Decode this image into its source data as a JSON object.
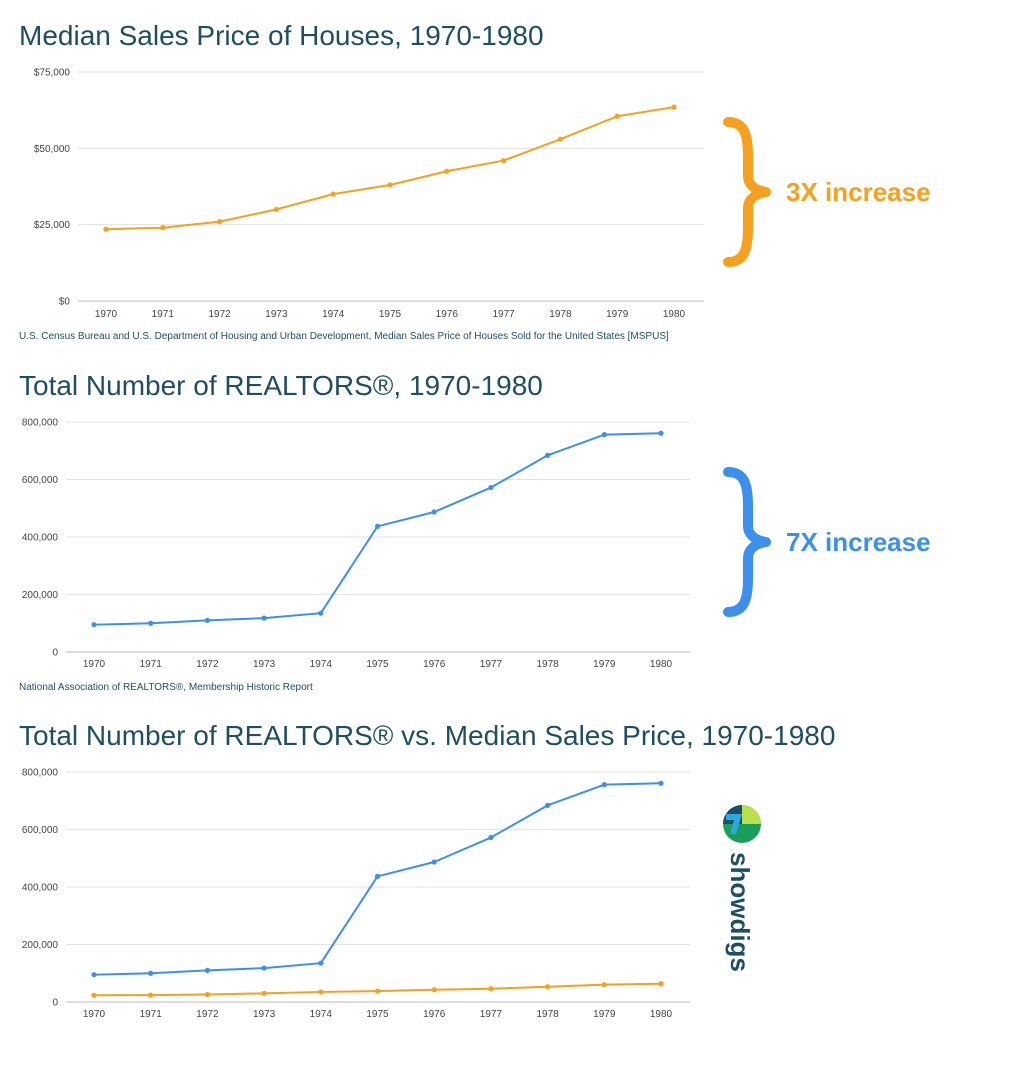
{
  "colors": {
    "price": "#f5a01f",
    "realtors": "#3d8fec",
    "title": "#1f4e63",
    "grid": "#e3e3e3"
  },
  "annotations": {
    "price_increase": "3X increase",
    "realtors_increase": "7X increase"
  },
  "logo": {
    "text": "showdigs",
    "icon": "showdigs-logo-icon"
  },
  "chart_data": [
    {
      "type": "line",
      "title": "Median Sales Price of Houses, 1970-1980",
      "source": "U.S. Census Bureau and U.S. Department of Housing and Urban Development, Median Sales Price of Houses Sold for the United States [MSPUS]",
      "categories": [
        "1970",
        "1971",
        "1972",
        "1973",
        "1974",
        "1975",
        "1976",
        "1977",
        "1978",
        "1979",
        "1980"
      ],
      "series": [
        {
          "name": "Median Sales Price",
          "color": "#f5a01f",
          "values": [
            23500,
            24000,
            26000,
            30000,
            35000,
            38000,
            42500,
            46000,
            53000,
            60500,
            63500
          ]
        }
      ],
      "ylim": [
        0,
        75000
      ],
      "yticks": [
        0,
        25000,
        50000,
        75000
      ],
      "ytick_labels": [
        "$0",
        "$25,000",
        "$50,000",
        "$75,000"
      ],
      "grid": true
    },
    {
      "type": "line",
      "title": "Total Number of REALTORS®, 1970-1980",
      "source": "National Association of REALTORS®, Membership Historic Report",
      "categories": [
        "1970",
        "1971",
        "1972",
        "1973",
        "1974",
        "1975",
        "1976",
        "1977",
        "1978",
        "1979",
        "1980"
      ],
      "series": [
        {
          "name": "REALTORS",
          "color": "#3d8fec",
          "values": [
            95000,
            100000,
            110000,
            118000,
            135000,
            437000,
            487000,
            572000,
            684000,
            756000,
            761000
          ]
        }
      ],
      "ylim": [
        0,
        800000
      ],
      "yticks": [
        0,
        200000,
        400000,
        600000,
        800000
      ],
      "ytick_labels": [
        "0",
        "200,000",
        "400,000",
        "600,000",
        "800,000"
      ],
      "grid": true
    },
    {
      "type": "line",
      "title": "Total Number of REALTORS® vs. Median Sales Price, 1970-1980",
      "categories": [
        "1970",
        "1971",
        "1972",
        "1973",
        "1974",
        "1975",
        "1976",
        "1977",
        "1978",
        "1979",
        "1980"
      ],
      "series": [
        {
          "name": "REALTORS",
          "color": "#3d8fec",
          "values": [
            95000,
            100000,
            110000,
            118000,
            135000,
            437000,
            487000,
            572000,
            684000,
            756000,
            761000
          ]
        },
        {
          "name": "Median Sales Price",
          "color": "#f5a01f",
          "values": [
            23500,
            24000,
            26000,
            30000,
            35000,
            38000,
            42500,
            46000,
            53000,
            60500,
            63500
          ]
        }
      ],
      "ylim": [
        0,
        800000
      ],
      "yticks": [
        0,
        200000,
        400000,
        600000,
        800000
      ],
      "ytick_labels": [
        "0",
        "200,000",
        "400,000",
        "600,000",
        "800,000"
      ],
      "grid": true
    }
  ]
}
